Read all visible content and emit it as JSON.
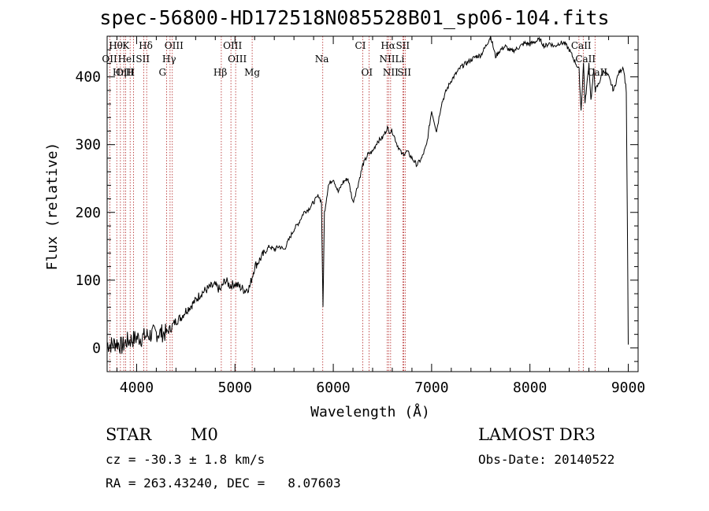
{
  "chart_data": {
    "type": "line",
    "title": "spec-56800-HD172518N085528B01_sp06-104.fits",
    "xlabel": "Wavelength (Å)",
    "ylabel": "Flux (relative)",
    "xlim": [
      3700,
      9100
    ],
    "ylim": [
      -35,
      460
    ],
    "x_ticks": [
      4000,
      5000,
      6000,
      7000,
      8000,
      9000
    ],
    "y_ticks": [
      0,
      100,
      200,
      300,
      400
    ],
    "series": [
      {
        "name": "spectrum",
        "x": [
          3700,
          3750,
          3800,
          3850,
          3900,
          3950,
          4000,
          4050,
          4100,
          4150,
          4200,
          4250,
          4300,
          4350,
          4400,
          4450,
          4500,
          4550,
          4600,
          4650,
          4700,
          4750,
          4800,
          4850,
          4900,
          4950,
          5000,
          5050,
          5100,
          5150,
          5200,
          5250,
          5300,
          5350,
          5400,
          5450,
          5500,
          5550,
          5600,
          5650,
          5700,
          5750,
          5800,
          5850,
          5880,
          5895,
          5910,
          5950,
          6000,
          6050,
          6100,
          6150,
          6200,
          6250,
          6300,
          6350,
          6400,
          6450,
          6500,
          6550,
          6563,
          6600,
          6650,
          6700,
          6750,
          6800,
          6850,
          6900,
          6950,
          7000,
          7050,
          7100,
          7150,
          7200,
          7250,
          7300,
          7350,
          7400,
          7450,
          7500,
          7550,
          7600,
          7650,
          7700,
          7750,
          7800,
          7850,
          7900,
          7950,
          8000,
          8050,
          8100,
          8150,
          8200,
          8250,
          8300,
          8350,
          8400,
          8450,
          8500,
          8520,
          8545,
          8560,
          8600,
          8620,
          8650,
          8665,
          8700,
          8750,
          8800,
          8850,
          8900,
          8950,
          8980,
          8990,
          9000
        ],
        "values": [
          5,
          5,
          8,
          2,
          10,
          12,
          15,
          15,
          18,
          20,
          22,
          22,
          22,
          30,
          40,
          45,
          55,
          62,
          70,
          80,
          85,
          90,
          92,
          85,
          100,
          92,
          95,
          90,
          85,
          90,
          120,
          130,
          140,
          150,
          145,
          150,
          145,
          160,
          175,
          185,
          200,
          205,
          215,
          225,
          215,
          60,
          200,
          240,
          250,
          230,
          245,
          250,
          215,
          240,
          270,
          285,
          290,
          305,
          310,
          325,
          320,
          320,
          300,
          285,
          290,
          280,
          270,
          280,
          300,
          350,
          320,
          360,
          380,
          395,
          405,
          415,
          420,
          425,
          430,
          432,
          445,
          460,
          430,
          440,
          445,
          438,
          440,
          445,
          450,
          448,
          452,
          455,
          445,
          450,
          445,
          450,
          450,
          440,
          425,
          410,
          350,
          420,
          360,
          420,
          365,
          410,
          380,
          390,
          410,
          400,
          380,
          405,
          415,
          380,
          200,
          5
        ]
      }
    ],
    "line_markers": [
      {
        "label": "Hθ",
        "x": 3798,
        "row": 1
      },
      {
        "label": "K",
        "x": 3934,
        "row": 1
      },
      {
        "label": "Hδ",
        "x": 4102,
        "row": 1
      },
      {
        "label": "OIII",
        "x": 4363,
        "row": 1
      },
      {
        "label": "OIII",
        "x": 4959,
        "row": 1
      },
      {
        "label": "CI",
        "x": 6300,
        "row": 1
      },
      {
        "label": "Hα",
        "x": 6563,
        "row": 1
      },
      {
        "label": "SII",
        "x": 6716,
        "row": 1
      },
      {
        "label": "CaII",
        "x": 8498,
        "row": 1
      },
      {
        "label": "OII",
        "x": 3727,
        "row": 2
      },
      {
        "label": "HeI",
        "x": 3889,
        "row": 2
      },
      {
        "label": "SII",
        "x": 4072,
        "row": 2
      },
      {
        "label": "Hγ",
        "x": 4340,
        "row": 2
      },
      {
        "label": "OIII",
        "x": 5007,
        "row": 2
      },
      {
        "label": "Na",
        "x": 5893,
        "row": 2
      },
      {
        "label": "NII",
        "x": 6548,
        "row": 2
      },
      {
        "label": "Li",
        "x": 6708,
        "row": 2
      },
      {
        "label": "CaII",
        "x": 8542,
        "row": 2
      },
      {
        "label": "OIII",
        "x": 3869,
        "row": 3
      },
      {
        "label": "Hη",
        "x": 3835,
        "row": 3
      },
      {
        "label": "H",
        "x": 3969,
        "row": 3
      },
      {
        "label": "G",
        "x": 4305,
        "row": 3
      },
      {
        "label": "Hβ",
        "x": 4861,
        "row": 3
      },
      {
        "label": "Mg",
        "x": 5175,
        "row": 3
      },
      {
        "label": "OI",
        "x": 6364,
        "row": 3
      },
      {
        "label": "NII",
        "x": 6583,
        "row": 3
      },
      {
        "label": "SII",
        "x": 6731,
        "row": 3
      },
      {
        "label": "CaII",
        "x": 8662,
        "row": 3
      }
    ]
  },
  "info": {
    "obj_class": "STAR",
    "subclass": "M0",
    "survey": "LAMOST DR3",
    "cz": "cz = -30.3 ± 1.8 km/s",
    "obs_date": "Obs-Date: 20140522",
    "coords": "RA = 263.43240, DEC =   8.07603"
  }
}
